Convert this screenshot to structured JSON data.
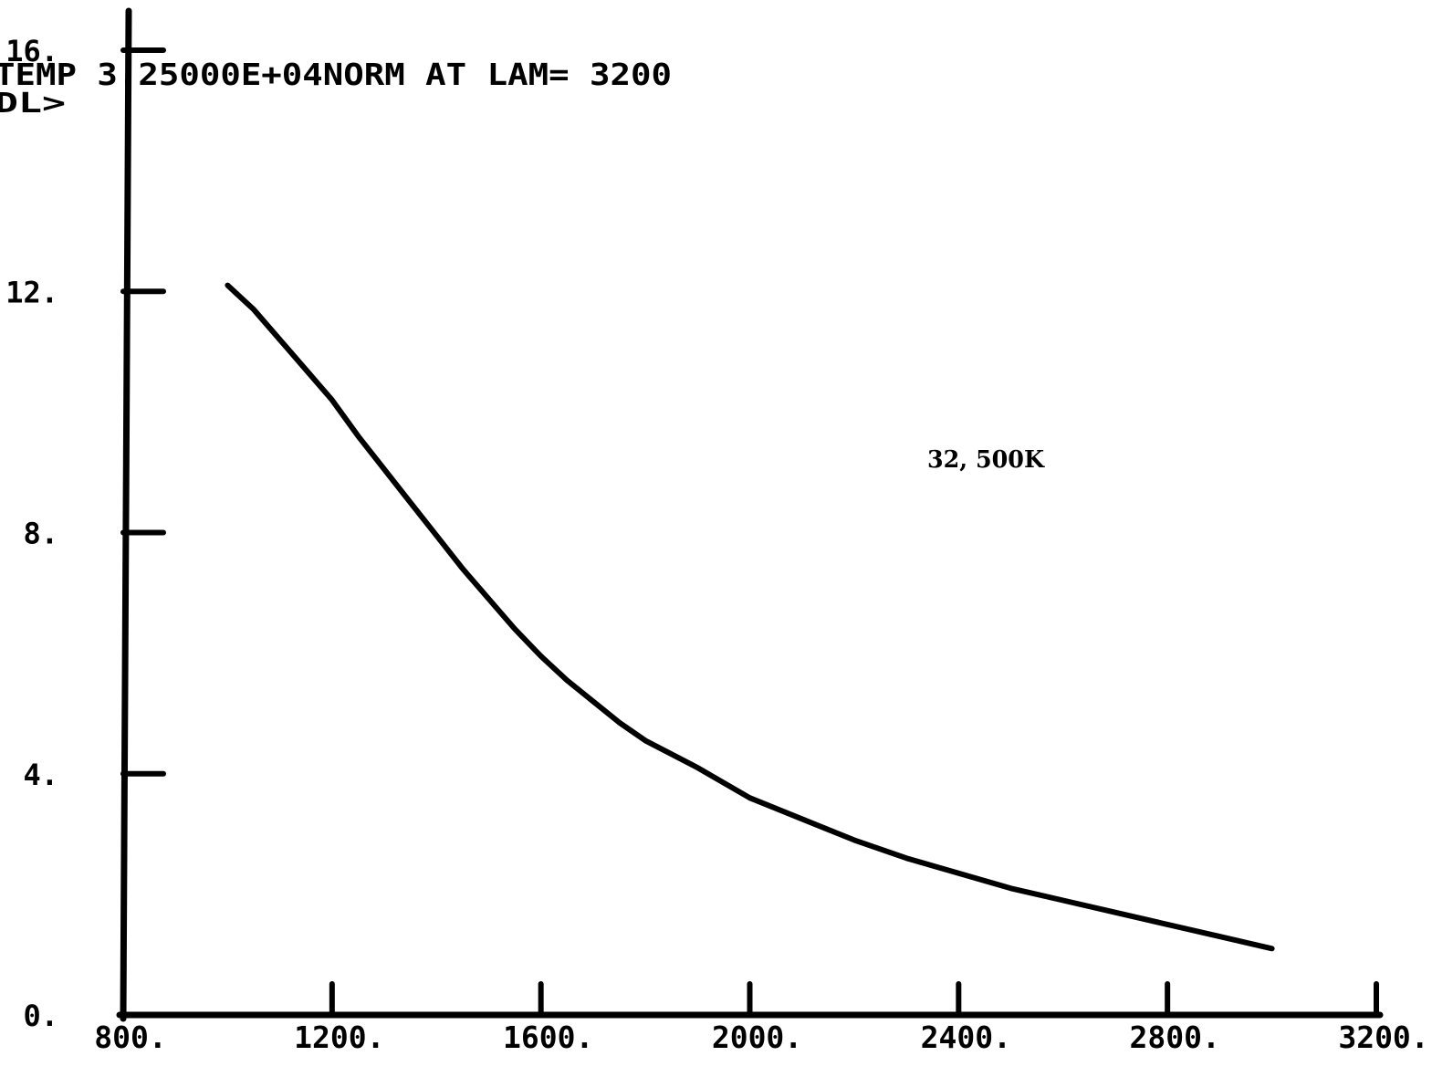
{
  "chart_data": {
    "type": "line",
    "title": "TEMP 3.25000E+04NORM AT LAM=  3200",
    "ylabel": "DL>",
    "xlabel": "",
    "annotation": "32, 500K",
    "xlim": [
      800,
      3200
    ],
    "ylim": [
      0,
      16
    ],
    "x_ticks": [
      "800.",
      "1200.",
      "1600.",
      "2000.",
      "2400.",
      "2800.",
      "3200."
    ],
    "y_ticks": [
      "0.",
      "4.",
      "8.",
      "12.",
      "16."
    ],
    "x_tick_values": [
      800,
      1200,
      1600,
      2000,
      2400,
      2800,
      3200
    ],
    "y_tick_values": [
      0,
      4,
      8,
      12,
      16
    ],
    "grid": false,
    "line_color": "#000000",
    "series": [
      {
        "x": [
          1000,
          1050,
          1100,
          1150,
          1200,
          1250,
          1300,
          1350,
          1400,
          1450,
          1500,
          1550,
          1600,
          1650,
          1700,
          1750,
          1800,
          1900,
          2000,
          2100,
          2200,
          2300,
          2400,
          2500,
          2600,
          2700,
          2800,
          2900,
          3000
        ],
        "y": [
          12.1,
          11.7,
          11.2,
          10.7,
          10.2,
          9.6,
          9.05,
          8.5,
          7.95,
          7.4,
          6.9,
          6.4,
          5.95,
          5.55,
          5.2,
          4.85,
          4.55,
          4.1,
          3.6,
          3.25,
          2.9,
          2.6,
          2.35,
          2.1,
          1.9,
          1.7,
          1.5,
          1.3,
          1.1
        ]
      }
    ]
  }
}
